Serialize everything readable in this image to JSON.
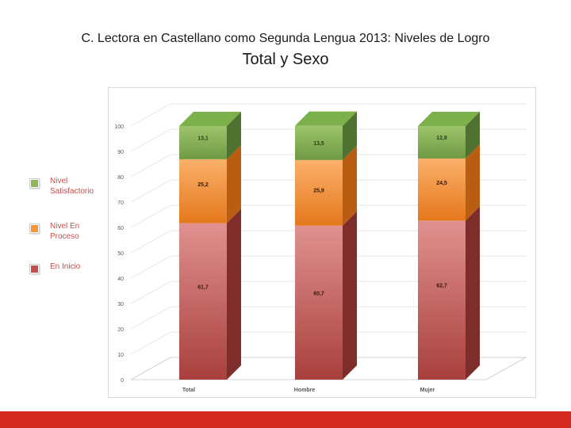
{
  "header": {
    "title": "C. Lectora en Castellano como Segunda Lengua 2013: Niveles de Logro",
    "subtitle": "Total y Sexo"
  },
  "legend": {
    "items": [
      {
        "label": "Nivel Satisfactorio",
        "color": "#8cb75a"
      },
      {
        "label": "Nivel En Proceso",
        "color": "#f7963c"
      },
      {
        "label": "En Inicio",
        "color": "#c0504d"
      }
    ]
  },
  "chart_data": {
    "type": "bar",
    "stacked": true,
    "categories": [
      "Total",
      "Hombre",
      "Mujer"
    ],
    "series": [
      {
        "name": "En Inicio",
        "values": [
          61.7,
          60.7,
          62.7
        ],
        "labels": [
          "61,7",
          "60,7",
          "62,7"
        ],
        "color": "#c0504d"
      },
      {
        "name": "Nivel En Proceso",
        "values": [
          25.2,
          25.9,
          24.5
        ],
        "labels": [
          "25,2",
          "25,9",
          "24,5"
        ],
        "color": "#f7963c"
      },
      {
        "name": "Nivel Satisfactorio",
        "values": [
          13.1,
          13.5,
          12.8
        ],
        "labels": [
          "13,1",
          "13,5",
          "12,8"
        ],
        "color": "#8cb75a"
      }
    ],
    "yticks": [
      "0",
      "10",
      "20",
      "30",
      "40",
      "50",
      "60",
      "70",
      "80",
      "90",
      "100"
    ],
    "ylim": [
      0,
      100
    ],
    "title": "",
    "xlabel": "",
    "ylabel": ""
  },
  "colors": {
    "footer": "#d62b22"
  }
}
